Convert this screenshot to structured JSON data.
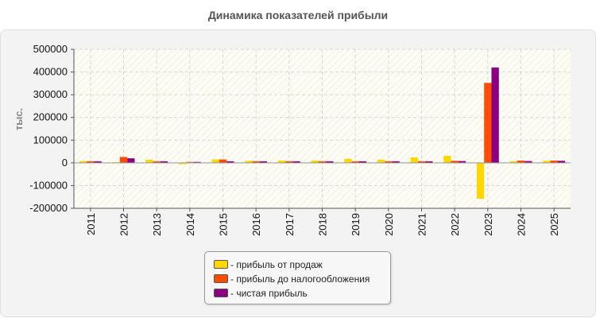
{
  "chart_data": {
    "type": "bar",
    "title": "Динамика показателей прибыли",
    "ylabel": "тыс.",
    "xlabel": "",
    "ylim": [
      -200000,
      500000
    ],
    "yticks": [
      500000,
      400000,
      300000,
      200000,
      100000,
      0,
      -100000,
      -200000
    ],
    "grid": true,
    "legend_position": "bottom-center",
    "categories": [
      "2011",
      "2012",
      "2013",
      "2014",
      "2015",
      "2016",
      "2017",
      "2018",
      "2019",
      "2020",
      "2021",
      "2022",
      "2023",
      "2024",
      "2025"
    ],
    "series": [
      {
        "name": "- прибыль от продаж",
        "color": "#ffd700",
        "values": [
          8000,
          3000,
          14000,
          -6000,
          15000,
          9000,
          10000,
          10000,
          18000,
          14000,
          24000,
          31000,
          -158000,
          7000,
          9000
        ]
      },
      {
        "name": "- прибыль до налогообложения",
        "color": "#ff4c00",
        "values": [
          7000,
          26000,
          7000,
          4000,
          15000,
          7000,
          7000,
          7000,
          7000,
          7000,
          7000,
          9000,
          352000,
          10000,
          10000
        ]
      },
      {
        "name": "- чистая прибыль",
        "color": "#8b0080",
        "values": [
          7000,
          20000,
          7000,
          4000,
          7000,
          7000,
          7000,
          7000,
          7000,
          7000,
          7000,
          8000,
          420000,
          8000,
          9000
        ]
      }
    ]
  }
}
